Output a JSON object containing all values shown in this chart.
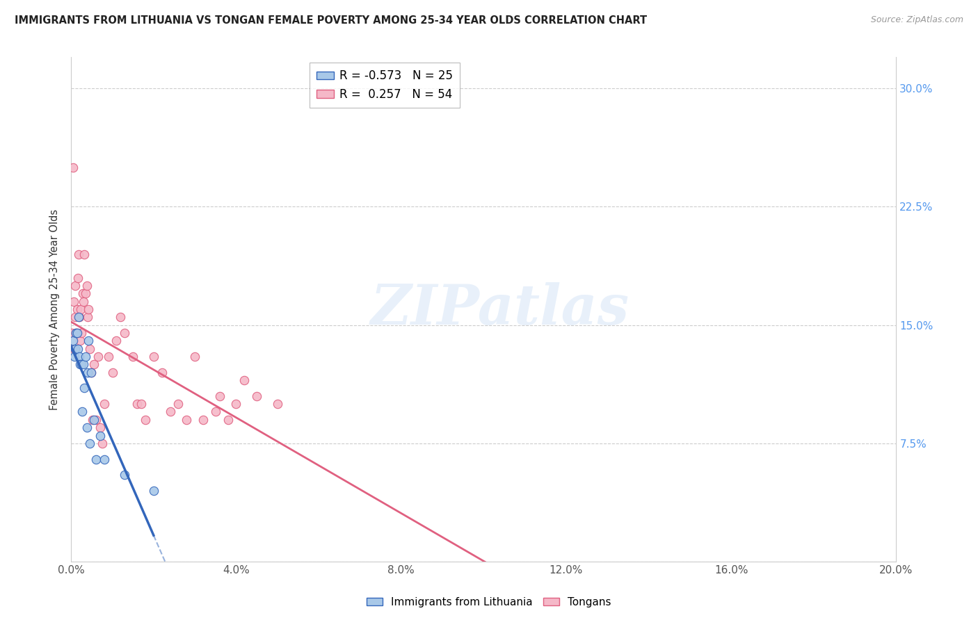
{
  "title": "IMMIGRANTS FROM LITHUANIA VS TONGAN FEMALE POVERTY AMONG 25-34 YEAR OLDS CORRELATION CHART",
  "source": "Source: ZipAtlas.com",
  "xlabel": "",
  "ylabel": "Female Poverty Among 25-34 Year Olds",
  "xlim": [
    0,
    0.2
  ],
  "ylim": [
    0,
    0.32
  ],
  "xticks": [
    0.0,
    0.04,
    0.08,
    0.12,
    0.16,
    0.2
  ],
  "yticks": [
    0.0,
    0.075,
    0.15,
    0.225,
    0.3
  ],
  "yticklabels_right": [
    "",
    "7.5%",
    "15.0%",
    "22.5%",
    "30.0%"
  ],
  "grid_color": "#cccccc",
  "background_color": "#ffffff",
  "watermark": "ZIPatlas",
  "legend_R1": "-0.573",
  "legend_N1": "25",
  "legend_R2": "0.257",
  "legend_N2": "54",
  "legend_label1": "Immigrants from Lithuania",
  "legend_label2": "Tongans",
  "blue_scatter_color": "#A8C8E8",
  "pink_scatter_color": "#F5B8C8",
  "blue_line_color": "#3366BB",
  "pink_line_color": "#E06080",
  "scatter_size": 80,
  "lithuania_x": [
    0.0004,
    0.0008,
    0.001,
    0.0012,
    0.0014,
    0.0016,
    0.0018,
    0.002,
    0.0022,
    0.0025,
    0.0027,
    0.003,
    0.0032,
    0.0035,
    0.0038,
    0.004,
    0.0042,
    0.0045,
    0.0048,
    0.0055,
    0.006,
    0.007,
    0.008,
    0.013,
    0.02
  ],
  "lithuania_y": [
    0.14,
    0.13,
    0.135,
    0.145,
    0.145,
    0.135,
    0.155,
    0.13,
    0.125,
    0.125,
    0.095,
    0.125,
    0.11,
    0.13,
    0.085,
    0.12,
    0.14,
    0.075,
    0.12,
    0.09,
    0.065,
    0.08,
    0.065,
    0.055,
    0.045
  ],
  "tongan_x": [
    0.0002,
    0.0004,
    0.0006,
    0.0008,
    0.001,
    0.001,
    0.0012,
    0.0014,
    0.0015,
    0.0016,
    0.0018,
    0.002,
    0.0022,
    0.0024,
    0.0025,
    0.0028,
    0.003,
    0.0032,
    0.0035,
    0.0038,
    0.004,
    0.0042,
    0.0045,
    0.0048,
    0.0052,
    0.0055,
    0.006,
    0.0065,
    0.007,
    0.0075,
    0.008,
    0.009,
    0.01,
    0.011,
    0.012,
    0.013,
    0.015,
    0.016,
    0.017,
    0.018,
    0.02,
    0.022,
    0.024,
    0.026,
    0.028,
    0.03,
    0.032,
    0.035,
    0.036,
    0.038,
    0.04,
    0.042,
    0.045,
    0.05
  ],
  "tongan_y": [
    0.145,
    0.25,
    0.165,
    0.135,
    0.155,
    0.175,
    0.145,
    0.16,
    0.145,
    0.18,
    0.195,
    0.155,
    0.14,
    0.16,
    0.145,
    0.17,
    0.165,
    0.195,
    0.17,
    0.175,
    0.155,
    0.16,
    0.135,
    0.12,
    0.09,
    0.125,
    0.09,
    0.13,
    0.085,
    0.075,
    0.1,
    0.13,
    0.12,
    0.14,
    0.155,
    0.145,
    0.13,
    0.1,
    0.1,
    0.09,
    0.13,
    0.12,
    0.095,
    0.1,
    0.09,
    0.13,
    0.09,
    0.095,
    0.105,
    0.09,
    0.1,
    0.115,
    0.105,
    0.1
  ]
}
